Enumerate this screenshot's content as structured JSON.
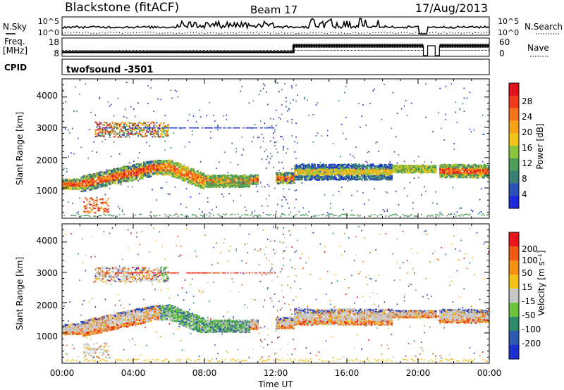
{
  "header": {
    "title": "Blackstone (fitACF)",
    "beam": "Beam 17",
    "date": "17/Aug/2013"
  },
  "status_panels": {
    "nsky_label": "N.Sky",
    "nsearch_label": "N.Search",
    "noise_ticks": [
      "10^5",
      "10^0"
    ],
    "freq_label": "Freq.",
    "freq_unit": "[MHz]",
    "freq_ticks": [
      "18",
      "8"
    ],
    "nave_label": "Nave",
    "nave_ticks": [
      "60",
      "0"
    ],
    "cpid_label": "CPID",
    "cpid_value": "twofsound  -3501"
  },
  "chart_data": [
    {
      "type": "heatmap",
      "panel": "power",
      "ylabel": "Slant Range [km]",
      "ylim": [
        0,
        4600
      ],
      "yticks": [
        "4000",
        "3000",
        "2000",
        "1000"
      ],
      "colorbar_label": "Power [dB]",
      "colorbar_ticks": [
        "28",
        "24",
        "20",
        "16",
        "12",
        "8",
        "4"
      ],
      "colorscale": [
        "#1f2bd8",
        "#2c52b8",
        "#3a7f74",
        "#4c9e5a",
        "#8cc63e",
        "#f0c419",
        "#f7a21a",
        "#f4731b",
        "#ee3b1e",
        "#e0121e"
      ]
    },
    {
      "type": "heatmap",
      "panel": "velocity",
      "ylabel": "Slant Range [km]",
      "ylim": [
        0,
        4600
      ],
      "yticks": [
        "4000",
        "3000",
        "2000",
        "1000"
      ],
      "colorbar_label": "Velocity [m s⁻¹]",
      "colorbar_ticks": [
        "200",
        "100",
        "50",
        "15",
        "-15",
        "-50",
        "-100",
        "-200"
      ],
      "colorscale": [
        "#1e2fd0",
        "#2b5bb0",
        "#2f8a6a",
        "#6cc43a",
        "#c8c8c8",
        "#f2c21a",
        "#f59214",
        "#ef5a16",
        "#e8161a"
      ]
    }
  ],
  "x_axis": {
    "label": "Time UT",
    "ticks": [
      "00:00",
      "04:00",
      "08:00",
      "12:00",
      "16:00",
      "20:00",
      "00:00"
    ]
  }
}
